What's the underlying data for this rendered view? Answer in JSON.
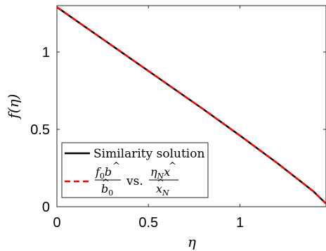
{
  "chart_data": {
    "type": "line",
    "xlabel": "η",
    "ylabel": "f(η)",
    "xlim": [
      0,
      1.47
    ],
    "ylim": [
      0,
      1.3
    ],
    "xticks": [
      0,
      0.5,
      1
    ],
    "yticks": [
      0,
      0.5,
      1
    ],
    "x_tick_labels": [
      "0",
      "0.5",
      "1"
    ],
    "y_tick_labels": [
      "0",
      "0.5",
      "1"
    ],
    "grid": false,
    "legend_position": "bottom-left",
    "series": [
      {
        "name": "Similarity solution",
        "color": "#000000",
        "style": "solid",
        "x": [
          0,
          0.2,
          0.4,
          0.6,
          0.8,
          1.0,
          1.2,
          1.4,
          1.47
        ],
        "y": [
          1.29,
          1.125,
          0.96,
          0.795,
          0.63,
          0.46,
          0.285,
          0.1,
          0.02
        ]
      },
      {
        "name": "f0 b̂ / b̂0 vs. ηN x̂ / x̂N",
        "color": "#ff0000",
        "style": "dashed",
        "x": [
          0,
          0.2,
          0.4,
          0.6,
          0.8,
          1.0,
          1.2,
          1.4,
          1.47
        ],
        "y": [
          1.29,
          1.125,
          0.96,
          0.795,
          0.63,
          0.46,
          0.285,
          0.1,
          0.02
        ]
      }
    ],
    "legend": {
      "entry1_text": "Similarity solution",
      "entry2_vs": "vs."
    }
  }
}
